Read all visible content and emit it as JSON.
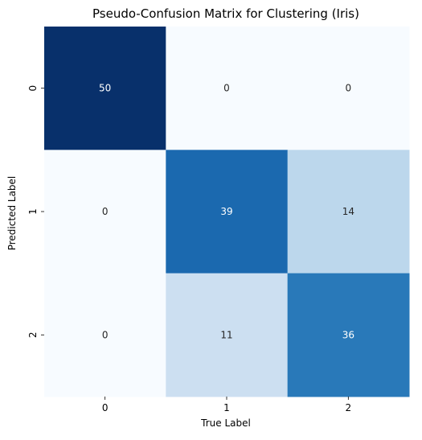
{
  "chart_data": {
    "type": "heatmap",
    "title": "Pseudo-Confusion Matrix for Clustering (Iris)",
    "xlabel": "True Label",
    "ylabel": "Predicted Label",
    "x_categories": [
      "0",
      "1",
      "2"
    ],
    "y_categories": [
      "0",
      "1",
      "2"
    ],
    "values": [
      [
        50,
        0,
        0
      ],
      [
        0,
        39,
        14
      ],
      [
        0,
        11,
        36
      ]
    ],
    "colormap": "Blues",
    "color_range": [
      0,
      50
    ],
    "colorbar": false,
    "annotations": true
  }
}
